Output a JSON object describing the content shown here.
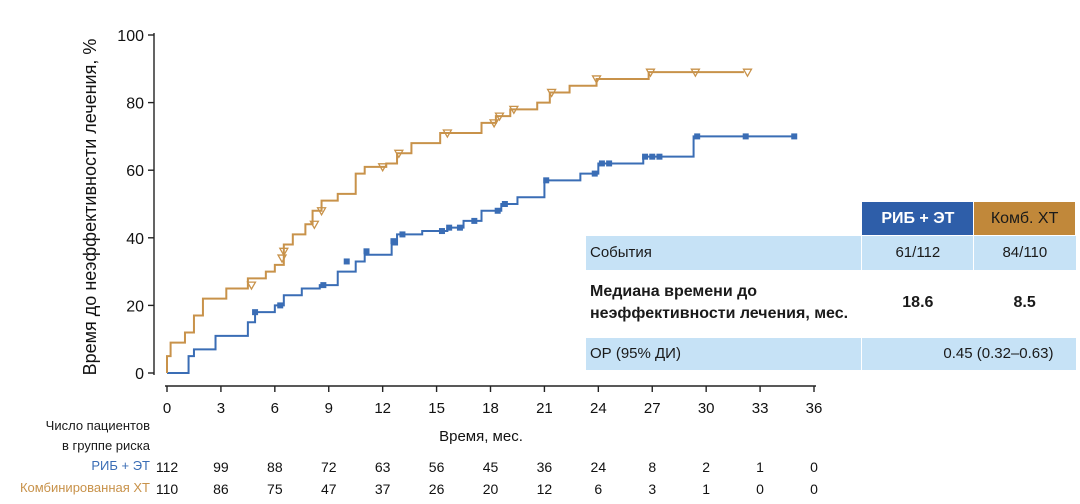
{
  "chart_data": {
    "type": "line",
    "subtype": "kaplan-meier",
    "ylabel": "Время до неэффективности лечения, %",
    "xlabel": "Время, мес.",
    "xlim": [
      0,
      36
    ],
    "ylim": [
      0,
      100
    ],
    "xticks": [
      0,
      3,
      6,
      9,
      12,
      15,
      18,
      21,
      24,
      27,
      30,
      33,
      36
    ],
    "yticks": [
      0,
      20,
      40,
      60,
      80,
      100
    ],
    "series": [
      {
        "name": "РИБ + ЭТ",
        "color": "#3a6db5",
        "marker": "square",
        "steps": [
          [
            0,
            0
          ],
          [
            1.2,
            5
          ],
          [
            1.5,
            7
          ],
          [
            2.7,
            11
          ],
          [
            4.5,
            15
          ],
          [
            4.9,
            18
          ],
          [
            6,
            20
          ],
          [
            6.5,
            23
          ],
          [
            7.5,
            25
          ],
          [
            8.5,
            26
          ],
          [
            9.5,
            30
          ],
          [
            10.5,
            33
          ],
          [
            11,
            35
          ],
          [
            12.5,
            38
          ],
          [
            12.8,
            41
          ],
          [
            14.2,
            42
          ],
          [
            15.6,
            43
          ],
          [
            16.5,
            45
          ],
          [
            17.5,
            48
          ],
          [
            18.6,
            50
          ],
          [
            19.5,
            52
          ],
          [
            21,
            57
          ],
          [
            23,
            59
          ],
          [
            24,
            62
          ],
          [
            26.5,
            64
          ],
          [
            29,
            64
          ],
          [
            29.3,
            70
          ],
          [
            35,
            70
          ]
        ],
        "censors": [
          [
            4.9,
            18
          ],
          [
            6.3,
            20
          ],
          [
            8.7,
            26
          ],
          [
            10,
            33
          ],
          [
            11.1,
            36
          ],
          [
            12.6,
            39
          ],
          [
            13.1,
            41
          ],
          [
            15.3,
            42
          ],
          [
            15.7,
            43
          ],
          [
            16.3,
            43
          ],
          [
            17.1,
            45
          ],
          [
            18.4,
            48
          ],
          [
            18.8,
            50
          ],
          [
            21.1,
            57
          ],
          [
            23.8,
            59
          ],
          [
            24.2,
            62
          ],
          [
            24.6,
            62
          ],
          [
            26.6,
            64
          ],
          [
            27,
            64
          ],
          [
            27.4,
            64
          ],
          [
            29.5,
            70
          ],
          [
            32.2,
            70
          ],
          [
            34.9,
            70
          ]
        ]
      },
      {
        "name": "Комбинированная ХТ",
        "color": "#c8924a",
        "marker": "triangle",
        "steps": [
          [
            0,
            0
          ],
          [
            0,
            5
          ],
          [
            0.2,
            9
          ],
          [
            1,
            12
          ],
          [
            1.5,
            17
          ],
          [
            2,
            22
          ],
          [
            3.3,
            25
          ],
          [
            4.5,
            28
          ],
          [
            5.5,
            30
          ],
          [
            6,
            32
          ],
          [
            6.5,
            38
          ],
          [
            7,
            41
          ],
          [
            7.7,
            44
          ],
          [
            8.1,
            48
          ],
          [
            8.6,
            51
          ],
          [
            9.5,
            53
          ],
          [
            10.5,
            59
          ],
          [
            11,
            61
          ],
          [
            12.2,
            62
          ],
          [
            12.8,
            65
          ],
          [
            13.6,
            68
          ],
          [
            15.2,
            71
          ],
          [
            17.5,
            74
          ],
          [
            18.3,
            76
          ],
          [
            19.1,
            78
          ],
          [
            20.6,
            80
          ],
          [
            21.3,
            83
          ],
          [
            22.4,
            85
          ],
          [
            23.9,
            87
          ],
          [
            26.8,
            89
          ],
          [
            32.1,
            89
          ]
        ],
        "censors": [
          [
            4.7,
            26
          ],
          [
            6.4,
            34
          ],
          [
            6.5,
            36
          ],
          [
            8.2,
            44
          ],
          [
            8.6,
            48
          ],
          [
            12,
            61
          ],
          [
            12.9,
            65
          ],
          [
            15.6,
            71
          ],
          [
            18.2,
            74
          ],
          [
            18.5,
            76
          ],
          [
            19.3,
            78
          ],
          [
            21.4,
            83
          ],
          [
            23.9,
            87
          ],
          [
            26.9,
            89
          ],
          [
            29.4,
            89
          ],
          [
            32.3,
            89
          ]
        ]
      }
    ],
    "risk_table": {
      "title_line1": "Число пациентов",
      "title_line2": "в группе риска",
      "rows": [
        {
          "label": "РИБ + ЭТ",
          "color": "#3a6db5",
          "values": [
            "112",
            "99",
            "88",
            "72",
            "63",
            "56",
            "45",
            "36",
            "24",
            "8",
            "2",
            "1",
            "0"
          ]
        },
        {
          "label": "Комбинированная ХТ",
          "color": "#c8924a",
          "values": [
            "110",
            "86",
            "75",
            "47",
            "37",
            "26",
            "20",
            "12",
            "6",
            "3",
            "1",
            "0",
            "0"
          ]
        }
      ]
    }
  },
  "summary": {
    "col_ribe": "РИБ + ЭТ",
    "col_chem": "Комб. ХТ",
    "events_label": "События",
    "events_ribe": "61/112",
    "events_chem": "84/110",
    "median_label": "Медиана времени  до неэффективности  лечения, мес.",
    "median_ribe": "18.6",
    "median_chem": "8.5",
    "hr_label": "ОР (95% ДИ)",
    "hr_value": "0.45 (0.32–0.63)"
  }
}
